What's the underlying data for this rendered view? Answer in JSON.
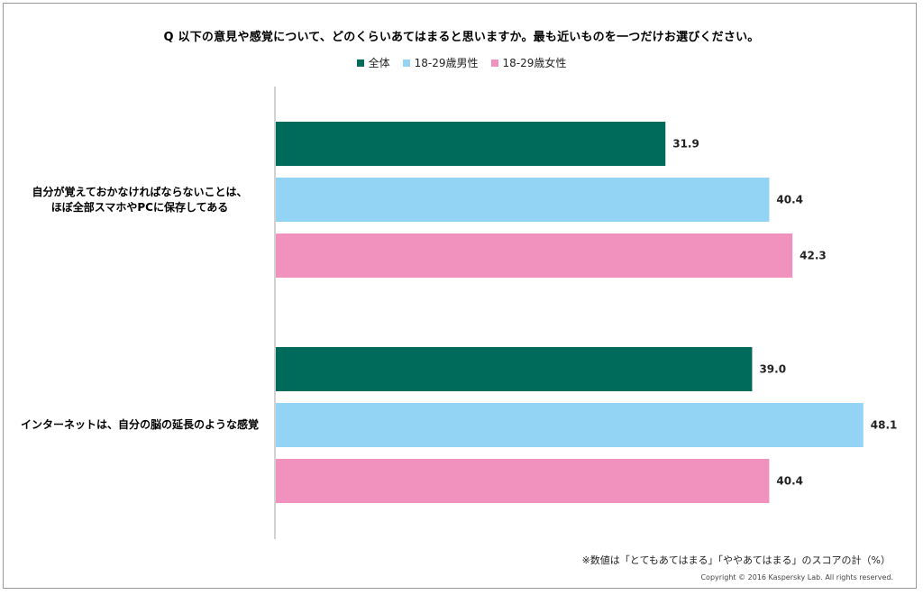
{
  "chart_data": {
    "type": "bar",
    "orientation": "horizontal",
    "title": "Q 以下の意見や感覚について、どのくらいあてはまると思いますか。最も近いものを一つだけお選びください。",
    "categories": [
      [
        "自分が覚えておかなければならないことは、",
        "ほぼ全部スマホやPCに保存してある"
      ],
      [
        "インターネットは、自分の脳の延長のような感覚"
      ]
    ],
    "series": [
      {
        "name": "全体",
        "color": "#006b5a",
        "values": [
          31.9,
          39.0
        ]
      },
      {
        "name": "18-29歳男性",
        "color": "#93d4f5",
        "values": [
          40.4,
          48.1
        ]
      },
      {
        "name": "18-29歳女性",
        "color": "#f191be",
        "values": [
          42.3,
          40.4
        ]
      }
    ],
    "xlim": [
      0,
      50
    ],
    "grid": false,
    "legend_position": "top-center",
    "footnote": "※数値は「とてもあてはまる」「ややあてはまる」のスコアの計（%）",
    "copyright": "Copyright © 2016 Kaspersky Lab. All rights reserved."
  }
}
